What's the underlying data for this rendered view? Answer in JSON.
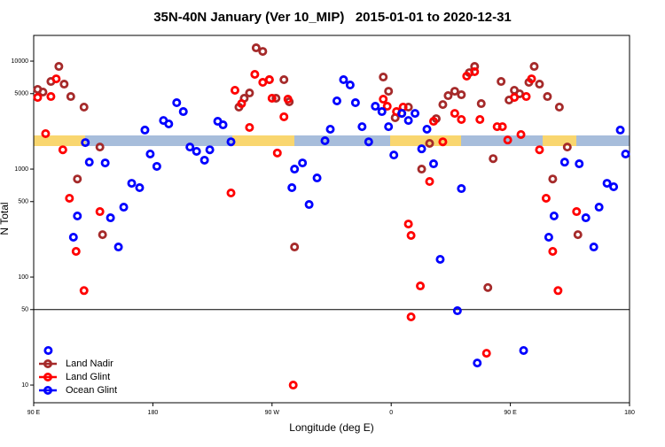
{
  "chart_data": {
    "type": "scatter",
    "title": "35N-40N January (Ver 10_MIP)   2015-01-01 to 2020-12-31",
    "xlabel": "Longitude (deg E)",
    "ylabel": "N Total",
    "xlim": [
      90,
      540
    ],
    "xticks": [
      {
        "value": 90,
        "label": "90 E"
      },
      {
        "value": 180,
        "label": "180"
      },
      {
        "value": 270,
        "label": "90 W"
      },
      {
        "value": 360,
        "label": "0"
      },
      {
        "value": 450,
        "label": "90 E"
      },
      {
        "value": 540,
        "label": "180"
      }
    ],
    "ylim": [
      6.86,
      17300
    ],
    "yscale": "log",
    "yticks": [
      10,
      50,
      100,
      500,
      1000,
      5000,
      10000
    ],
    "hline": 50,
    "legend": "lower left",
    "series": [
      {
        "name": "Land Nadir",
        "color": "#a52a2a",
        "x": [
          93,
          97,
          103,
          109,
          113,
          118,
          123,
          128,
          140,
          142,
          245,
          249,
          253,
          258,
          263,
          268,
          273,
          279,
          283,
          287,
          354,
          358,
          363,
          368,
          373,
          383,
          389,
          394,
          399,
          403,
          408,
          413,
          419,
          423,
          428,
          433,
          437,
          443,
          449,
          453,
          457,
          464,
          468,
          472,
          478,
          482,
          487,
          493,
          501
        ],
        "values": [
          5470,
          5170,
          6480,
          8930,
          6120,
          4700,
          810,
          3750,
          1600,
          247,
          3750,
          4530,
          5070,
          13270,
          12300,
          6730,
          4530,
          6730,
          4200,
          190,
          7120,
          5260,
          2990,
          3280,
          3750,
          1000,
          1730,
          2930,
          3960,
          4790,
          5260,
          4880,
          7820,
          8930,
          4040,
          80,
          1250,
          6480,
          4360,
          5370,
          4980,
          6360,
          8930,
          6120,
          4700,
          810,
          3750,
          1600,
          247
        ]
      },
      {
        "name": "Land Glint",
        "color": "#ff0000",
        "x": [
          93,
          99,
          103,
          107,
          112,
          117,
          122,
          128,
          140,
          239,
          242,
          247,
          253,
          257,
          263,
          268,
          270,
          274,
          279,
          282,
          286,
          354,
          357,
          364,
          369,
          373,
          375,
          375,
          382,
          389,
          392,
          399,
          408,
          413,
          417,
          423,
          427,
          432,
          440,
          444,
          448,
          453,
          458,
          462,
          466,
          472,
          477,
          482,
          486,
          500
        ],
        "values": [
          4610,
          2130,
          4700,
          6850,
          1510,
          537,
          173,
          75,
          404,
          601,
          5370,
          4040,
          2430,
          7540,
          6360,
          6730,
          4530,
          1410,
          3050,
          4440,
          10,
          4440,
          3820,
          3410,
          3750,
          310,
          243,
          42.8,
          82.8,
          768,
          2770,
          1790,
          3280,
          2880,
          7260,
          7980,
          2880,
          19.7,
          2470,
          2470,
          1860,
          4610,
          2090,
          4700,
          6850,
          1510,
          537,
          173,
          75,
          404
        ]
      },
      {
        "name": "Ocean Glint",
        "color": "#0000ff",
        "x": [
          101,
          120,
          123,
          129,
          132,
          144,
          148,
          154,
          158,
          164,
          170,
          174,
          178,
          183,
          188,
          192,
          198,
          203,
          208,
          213,
          219,
          223,
          229,
          233,
          239,
          285,
          287,
          293,
          298,
          304,
          310,
          314,
          319,
          324,
          329,
          333,
          338,
          343,
          348,
          353,
          358,
          362,
          368,
          373,
          378,
          383,
          387,
          392,
          397,
          410,
          413,
          425,
          460,
          479,
          483,
          491,
          502,
          507,
          513,
          517,
          523,
          528,
          533,
          537
        ],
        "values": [
          20.9,
          234,
          368,
          1760,
          1160,
          1140,
          354,
          190,
          444,
          739,
          673,
          2300,
          1380,
          1060,
          2820,
          2620,
          4120,
          3410,
          1600,
          1460,
          1210,
          1510,
          2770,
          2570,
          1790,
          673,
          1000,
          1140,
          470,
          828,
          1830,
          2340,
          4280,
          6730,
          6010,
          4120,
          2470,
          1790,
          3820,
          3410,
          2470,
          1350,
          3280,
          2820,
          3280,
          1540,
          2340,
          1120,
          146,
          48.8,
          660,
          16,
          20.9,
          234,
          368,
          1160,
          1120,
          354,
          190,
          444,
          739,
          686,
          2300,
          1380
        ]
      }
    ]
  }
}
